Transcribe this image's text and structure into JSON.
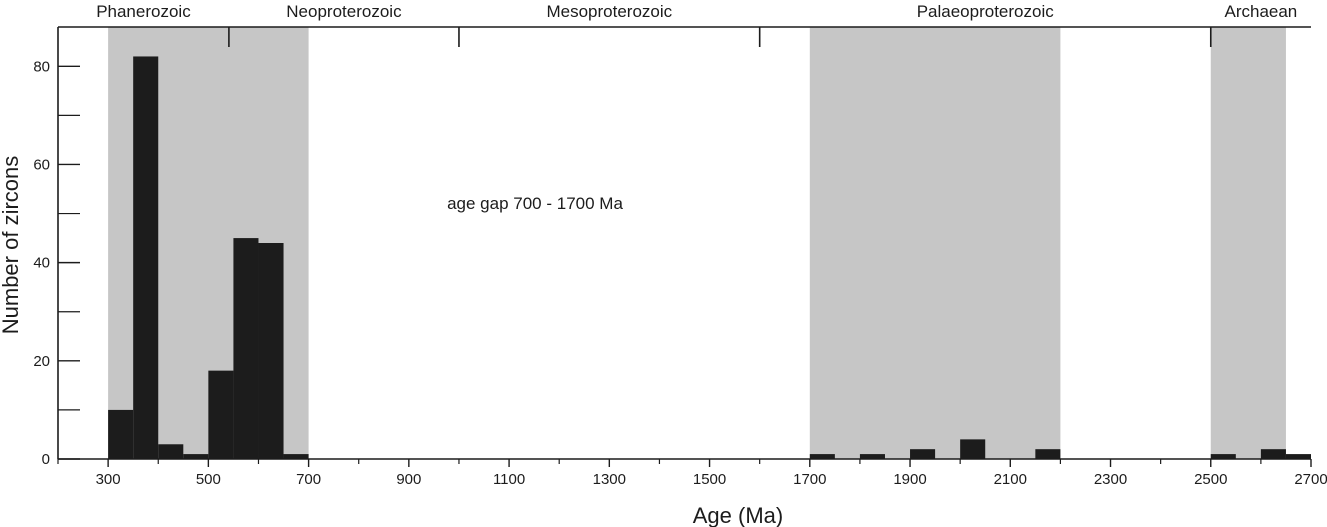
{
  "chart_data": {
    "type": "bar",
    "xlabel": "Age (Ma)",
    "ylabel": "Number of zircons",
    "xlim": [
      200,
      2700
    ],
    "ylim": [
      0,
      88
    ],
    "x_ticks": [
      300,
      500,
      700,
      900,
      1100,
      1300,
      1500,
      1700,
      1900,
      2100,
      2300,
      2500,
      2700
    ],
    "y_ticks": [
      0,
      20,
      40,
      60,
      80
    ],
    "bin_width": 50,
    "bins": [
      {
        "x0": 300,
        "x1": 350,
        "value": 10
      },
      {
        "x0": 350,
        "x1": 400,
        "value": 82
      },
      {
        "x0": 400,
        "x1": 450,
        "value": 3
      },
      {
        "x0": 450,
        "x1": 500,
        "value": 1
      },
      {
        "x0": 500,
        "x1": 550,
        "value": 18
      },
      {
        "x0": 550,
        "x1": 600,
        "value": 45
      },
      {
        "x0": 600,
        "x1": 650,
        "value": 44
      },
      {
        "x0": 650,
        "x1": 700,
        "value": 1
      },
      {
        "x0": 1700,
        "x1": 1750,
        "value": 1
      },
      {
        "x0": 1800,
        "x1": 1850,
        "value": 1
      },
      {
        "x0": 1900,
        "x1": 1950,
        "value": 2
      },
      {
        "x0": 2000,
        "x1": 2050,
        "value": 4
      },
      {
        "x0": 2150,
        "x1": 2200,
        "value": 2
      },
      {
        "x0": 2500,
        "x1": 2550,
        "value": 1
      },
      {
        "x0": 2600,
        "x1": 2650,
        "value": 2
      },
      {
        "x0": 2650,
        "x1": 2700,
        "value": 1
      }
    ],
    "shaded_ranges": [
      {
        "from": 300,
        "to": 700
      },
      {
        "from": 1700,
        "to": 2200
      },
      {
        "from": 2500,
        "to": 2650
      }
    ],
    "eras": [
      {
        "label": "Phanerozoic",
        "from": 200,
        "to": 541
      },
      {
        "label": "Neoproterozoic",
        "from": 541,
        "to": 1000
      },
      {
        "label": "Mesoproterozoic",
        "from": 1000,
        "to": 1600
      },
      {
        "label": "Palaeoproterozoic",
        "from": 1600,
        "to": 2500
      },
      {
        "label": "Archaean",
        "from": 2500,
        "to": 2700
      }
    ],
    "era_boundaries": [
      541,
      1000,
      1600,
      2500
    ],
    "annotation": "age gap 700 - 1700 Ma",
    "colors": {
      "bar": "#1c1c1c",
      "shade": "#c6c6c6",
      "axis": "#1c1c1c"
    }
  }
}
